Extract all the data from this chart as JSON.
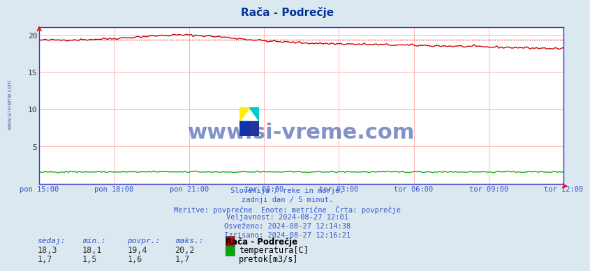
{
  "title": "Rača - Podrečje",
  "background_color": "#dce8f0",
  "plot_bg_color": "#ffffff",
  "grid_color_v": "#ffaaaa",
  "grid_color_h": "#ffaaaa",
  "border_color": "#3333cc",
  "x_tick_labels": [
    "pon 15:00",
    "pon 18:00",
    "pon 21:00",
    "tor 00:00",
    "tor 03:00",
    "tor 06:00",
    "tor 09:00",
    "tor 12:00"
  ],
  "x_tick_positions": [
    0,
    36,
    72,
    108,
    144,
    180,
    216,
    252
  ],
  "total_points": 252,
  "ylim": [
    0,
    21
  ],
  "yticks": [
    0,
    5,
    10,
    15,
    20
  ],
  "temp_color": "#cc0000",
  "flow_color": "#00aa00",
  "temp_avg": 19.4,
  "temp_min": 18.1,
  "temp_max": 20.2,
  "flow_avg": 1.6,
  "flow_min": 1.5,
  "flow_max": 1.7,
  "temp_current": 18.3,
  "flow_current": 1.7,
  "info_line1": "Slovenija / reke in morje.",
  "info_line2": "zadnji dan / 5 minut.",
  "info_line3": "Meritve: povprečne  Enote: metrične  Črta: povprečje",
  "info_line4": "Veljavnost: 2024-08-27 12:01",
  "info_line5": "Osveženo: 2024-08-27 12:14:38",
  "info_line6": "Izrisano: 2024-08-27 12:16:21",
  "watermark": "www.si-vreme.com",
  "axis_label_color": "#3355cc",
  "title_color": "#003399",
  "watermark_color": "#1a3a99",
  "left_label": "www.si-vreme.com",
  "table_header_color": "#3355cc",
  "table_value_color": "#333333",
  "station_label": "Rača - Podrečje",
  "legend_temp_label": "temperatura[C]",
  "legend_flow_label": "pretok[m3/s]"
}
